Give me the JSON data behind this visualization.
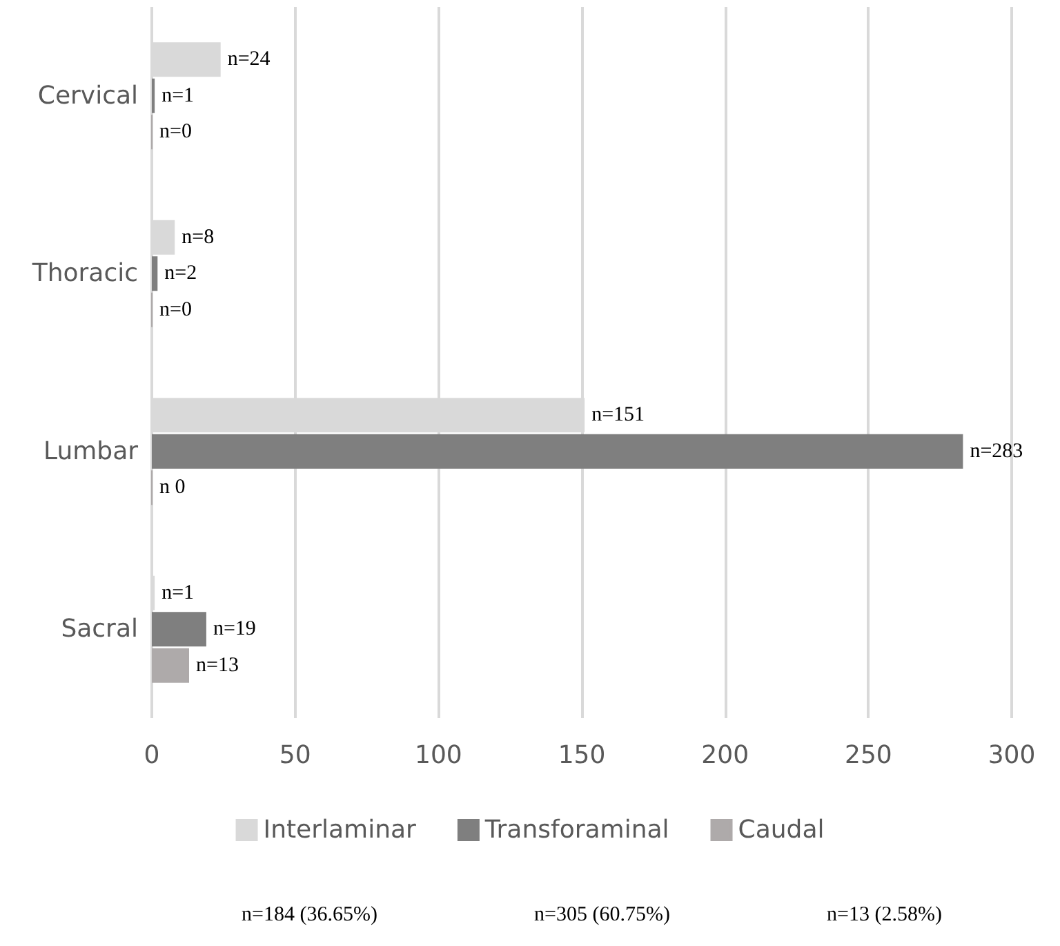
{
  "chart_data": {
    "type": "bar",
    "orientation": "horizontal",
    "categories": [
      "Cervical",
      "Thoracic",
      "Lumbar",
      "Sacral"
    ],
    "series": [
      {
        "name": "Interlaminar",
        "color": "#d9d9d9",
        "values": [
          24,
          8,
          151,
          1
        ],
        "value_labels": [
          "n=24",
          "n=8",
          "n=151",
          "n=1"
        ]
      },
      {
        "name": "Transforaminal",
        "color": "#7f7f7f",
        "values": [
          1,
          2,
          283,
          19
        ],
        "value_labels": [
          "n=1",
          "n=2",
          "n=283",
          "n=19"
        ]
      },
      {
        "name": "Caudal",
        "color": "#aeaaaa",
        "values": [
          0,
          0,
          0,
          13
        ],
        "value_labels": [
          "n=0",
          "n=0",
          "n 0",
          "n=13"
        ]
      }
    ],
    "xlim": [
      0,
      300
    ],
    "xticks": [
      0,
      50,
      100,
      150,
      200,
      250,
      300
    ],
    "grid": "x",
    "legend": "bottom",
    "annotations": [
      "n=184 (36.65%)",
      "n=305 (60.75%)",
      "n=13 (2.58%)"
    ]
  }
}
